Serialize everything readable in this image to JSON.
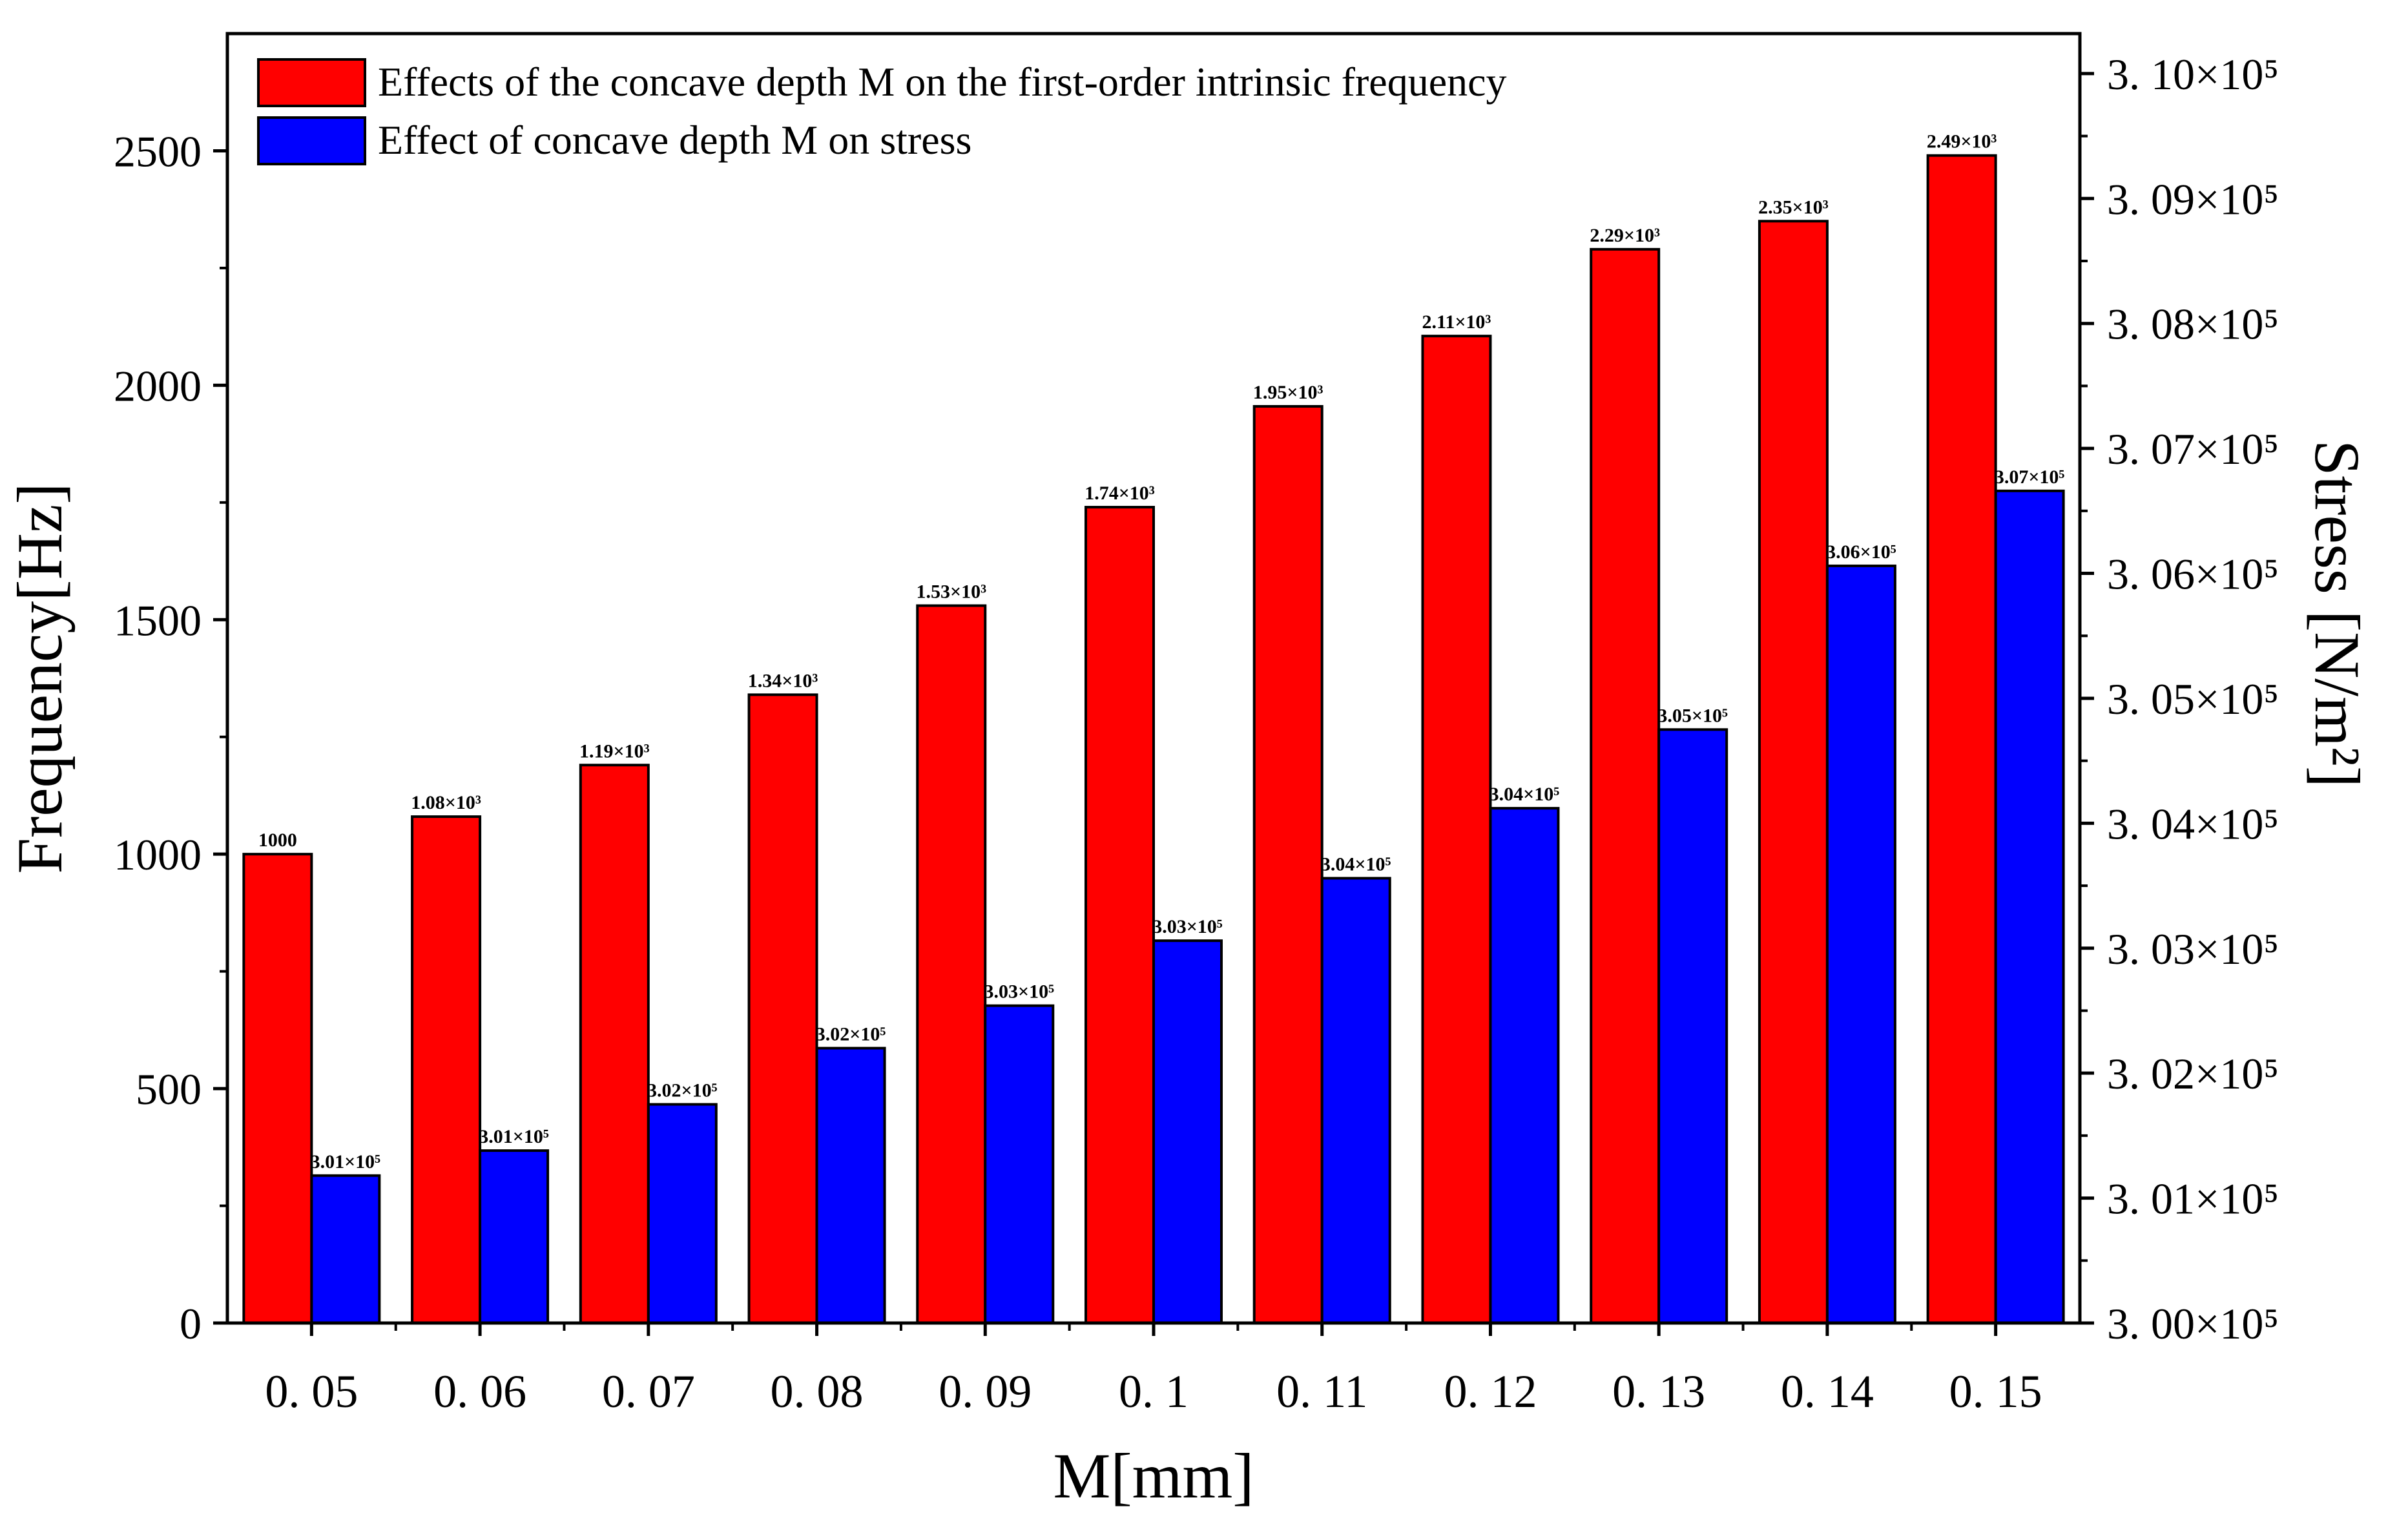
{
  "chart_data": {
    "type": "bar",
    "categories": [
      "0. 05",
      "0. 06",
      "0. 07",
      "0. 08",
      "0. 09",
      "0. 1",
      "0. 11",
      "0. 12",
      "0. 13",
      "0. 14",
      "0. 15"
    ],
    "xlabel": "M[mm]",
    "ylabel": "Frequency[Hz]",
    "y2label": "Stress [N/m²]",
    "ylim": [
      0,
      2750
    ],
    "y2lim": [
      300000,
      310320
    ],
    "y_ticks": [
      0,
      500,
      1000,
      1500,
      2000,
      2500
    ],
    "y_tick_labels": [
      "0",
      "500",
      "1000",
      "1500",
      "2000",
      "2500"
    ],
    "y2_ticks": [
      300000,
      301000,
      302000,
      303000,
      304000,
      305000,
      306000,
      307000,
      308000,
      309000,
      310000
    ],
    "y2_tick_labels": [
      "3. 00×10⁵",
      "3. 01×10⁵",
      "3. 02×10⁵",
      "3. 03×10⁵",
      "3. 04×10⁵",
      "3. 05×10⁵",
      "3. 06×10⁵",
      "3. 07×10⁵",
      "3. 08×10⁵",
      "3. 09×10⁵",
      "3. 10×10⁵"
    ],
    "legend_position": "top-left",
    "series": [
      {
        "name": "Effects of the concave depth M on the first-order intrinsic frequency",
        "axis": "left",
        "color": "#ff0000",
        "values": [
          1000,
          1080,
          1190,
          1340,
          1530,
          1740,
          1955,
          2105,
          2290,
          2350,
          2490
        ],
        "labels": [
          "1000",
          "1.08×10³",
          "1.19×10³",
          "1.34×10³",
          "1.53×10³",
          "1.74×10³",
          "1.95×10³",
          "2.11×10³",
          "2.29×10³",
          "2.35×10³",
          "2.49×10³"
        ]
      },
      {
        "name": "Effect of concave depth M on stress",
        "axis": "right",
        "color": "#0000ff",
        "values": [
          301180,
          301380,
          301750,
          302200,
          302540,
          303060,
          303560,
          304120,
          304750,
          306060,
          306660
        ],
        "labels": [
          "3.01×10⁵",
          "3.01×10⁵",
          "3.02×10⁵",
          "3.02×10⁵",
          "3.03×10⁵",
          "3.03×10⁵",
          "3.04×10⁵",
          "3.04×10⁵",
          "3.05×10⁵",
          "3.06×10⁵",
          "3.07×10⁵"
        ]
      }
    ]
  }
}
